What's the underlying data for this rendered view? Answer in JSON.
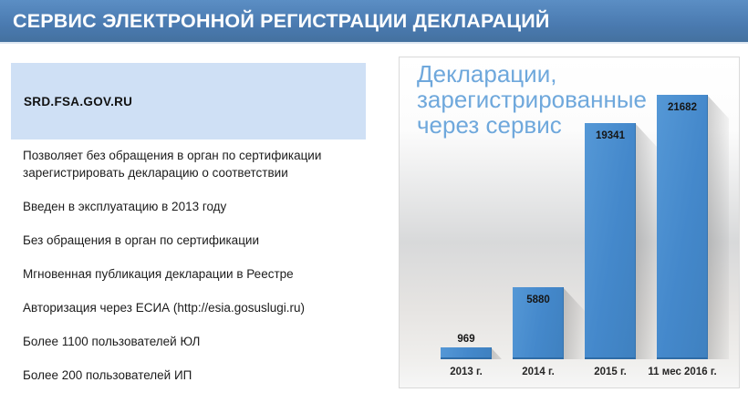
{
  "header": {
    "title": "СЕРВИС ЭЛЕКТРОННОЙ РЕГИСТРАЦИИ ДЕКЛАРАЦИЙ"
  },
  "left": {
    "url_box_label": "SRD.FSA.GOV.RU",
    "features": [
      "Позволяет без обращения в орган по сертификации зарегистрировать декларацию о соответствии",
      "Введен в эксплуатацию в 2013 году",
      "Без обращения в орган по сертификации",
      "Мгновенная публикация декларации в Реестре",
      "Авторизация через ЕСИА (http://esia.gosuslugi.ru)",
      "Более 1100 пользователей ЮЛ",
      "Более 200 пользователей ИП"
    ]
  },
  "chart_data": {
    "type": "bar",
    "title": "Декларации, зарегистрированные через сервис",
    "categories": [
      "2013 г.",
      "2014 г.",
      "2015 г.",
      "11 мес 2016 г."
    ],
    "values": [
      969,
      5880,
      19341,
      21682
    ],
    "xlabel": "",
    "ylabel": "",
    "ylim": [
      0,
      22000
    ],
    "grid": false,
    "legend": false,
    "data_labels": true,
    "bar_color": "#4a90d0"
  },
  "colors": {
    "banner_blue": "#4a7ab0",
    "bar_blue": "#4a90d0",
    "chart_title_blue": "#6fa8dc",
    "url_box_blue": "#cfe0f5",
    "panel_border": "#d9d9d9"
  }
}
